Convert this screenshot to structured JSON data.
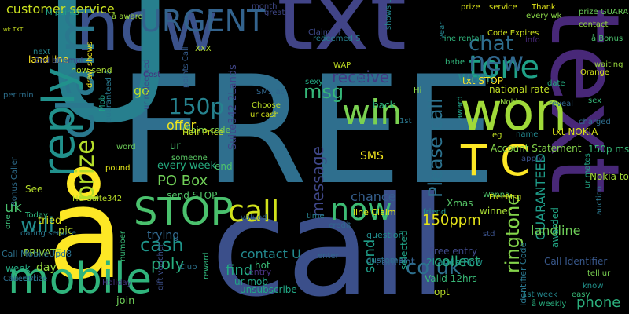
{
  "words": [
    {
      "text": "FREE",
      "color": "#2f6f8e"
    },
    {
      "text": "call",
      "color": "#3b4f8a"
    },
    {
      "text": "txt",
      "color": "#414487"
    },
    {
      "text": "now",
      "color": "#3b528b"
    },
    {
      "text": "U",
      "color": "#277f8e"
    },
    {
      "text": "text",
      "color": "#482878"
    },
    {
      "text": "å",
      "color": "#fde725"
    },
    {
      "text": "won",
      "color": "#a0da39"
    },
    {
      "text": "claim",
      "color": "#2a788e"
    },
    {
      "text": "mobile",
      "color": "#2fb47c"
    },
    {
      "text": "reply",
      "color": "#21918c"
    },
    {
      "text": "STOP",
      "color": "#4ac16d"
    },
    {
      "text": "URGENT",
      "color": "#33638d"
    },
    {
      "text": "win",
      "color": "#7ad151"
    },
    {
      "text": "tone",
      "color": "#1fa187"
    },
    {
      "text": "new",
      "color": "#31688e"
    },
    {
      "text": "prize",
      "color": "#b5de2b"
    },
    {
      "text": "T C",
      "color": "#fde725"
    },
    {
      "text": "now",
      "color": "#3dbc74"
    },
    {
      "text": "call",
      "color": "#d2e21b"
    },
    {
      "text": "150p",
      "color": "#26828e"
    },
    {
      "text": "msg",
      "color": "#35b779"
    },
    {
      "text": "chat",
      "color": "#2e6e8e"
    },
    {
      "text": "want",
      "color": "#25858e"
    },
    {
      "text": "Please call",
      "color": "#2c728e"
    },
    {
      "text": "message",
      "color": "#3f4788"
    },
    {
      "text": "receive",
      "color": "#443a83"
    },
    {
      "text": "will",
      "color": "#228c8d"
    },
    {
      "text": "cash",
      "color": "#1f958b"
    },
    {
      "text": "co uk",
      "color": "#2d708e"
    },
    {
      "text": "ringtone",
      "color": "#84d44b"
    },
    {
      "text": "GUARANTEED",
      "color": "#1e9c89"
    },
    {
      "text": "150ppm",
      "color": "#e5e419"
    },
    {
      "text": "Call Identifier",
      "color": "#38588c"
    },
    {
      "text": "landline",
      "color": "#6ece58"
    },
    {
      "text": "awarded",
      "color": "#21a685"
    },
    {
      "text": "phone",
      "color": "#2cb17e"
    },
    {
      "text": "customer service",
      "color": "#cae11f"
    },
    {
      "text": "poly",
      "color": "#29af7f"
    },
    {
      "text": "contact U",
      "color": "#23898e"
    },
    {
      "text": "collect",
      "color": "#28ae80"
    },
    {
      "text": "send",
      "color": "#1f9e89"
    },
    {
      "text": "find",
      "color": "#23a983"
    },
    {
      "text": "day",
      "color": "#95d840"
    },
    {
      "text": "offer",
      "color": "#f1e51d"
    },
    {
      "text": "PO Box",
      "color": "#70cf57"
    },
    {
      "text": "chance",
      "color": "#355f8d"
    },
    {
      "text": "SMS",
      "color": "#f4e61e"
    },
    {
      "text": "go",
      "color": "#bddf26"
    },
    {
      "text": "Suite342 2Lands",
      "color": "#404688"
    },
    {
      "text": "every week",
      "color": "#26ad81"
    },
    {
      "text": "Xmas",
      "color": "#56c667"
    },
    {
      "text": "winner",
      "color": "#a8db34"
    },
    {
      "text": "Valid 12hrs",
      "color": "#38b977"
    },
    {
      "text": "Free entry",
      "color": "#3e4989"
    },
    {
      "text": "2Lands Row",
      "color": "#1f988b"
    },
    {
      "text": "ur",
      "color": "#4ac16d"
    },
    {
      "text": "end",
      "color": "#4ec36b"
    },
    {
      "text": "send STOP",
      "color": "#52c569"
    },
    {
      "text": "Claim code",
      "color": "#7ad151"
    },
    {
      "text": "Half Price",
      "color": "#cae11f"
    },
    {
      "text": "See",
      "color": "#b5de2b"
    },
    {
      "text": "PRIVATE",
      "color": "#9bd93c"
    },
    {
      "text": "week",
      "color": "#25ab82"
    },
    {
      "text": "latest",
      "color": "#27808e"
    },
    {
      "text": "join",
      "color": "#6ece58"
    },
    {
      "text": "pic",
      "color": "#b8de29"
    },
    {
      "text": "tried",
      "color": "#dde318"
    },
    {
      "text": "trying",
      "color": "#31688e"
    },
    {
      "text": "entry",
      "color": "#46327e"
    },
    {
      "text": "hot",
      "color": "#3aba76"
    },
    {
      "text": "ur mob",
      "color": "#21a585"
    },
    {
      "text": "unsubscribe",
      "color": "#22a785"
    },
    {
      "text": "customer",
      "color": "#2d718e"
    },
    {
      "text": "question",
      "color": "#228d8d"
    },
    {
      "text": "content",
      "color": "#34618d"
    },
    {
      "text": "opt",
      "color": "#bade28"
    },
    {
      "text": "selected",
      "color": "#20a386"
    },
    {
      "text": "Identifier Code",
      "color": "#2a768e"
    },
    {
      "text": "Account Statement",
      "color": "#84d44b"
    },
    {
      "text": "service",
      "color": "#d8e219"
    },
    {
      "text": "Code Expires",
      "color": "#cde11d"
    },
    {
      "text": "Thank",
      "color": "#e2e418"
    },
    {
      "text": "prize GUARANTEED",
      "color": "#6ccd5a"
    },
    {
      "text": "contact",
      "color": "#95d840"
    },
    {
      "text": "Nokia",
      "color": "#93d741"
    },
    {
      "text": "txt STOP",
      "color": "#fde725"
    },
    {
      "text": "national rate",
      "color": "#c0df25"
    },
    {
      "text": "back",
      "color": "#2fb47c"
    },
    {
      "text": "Hi",
      "color": "#90d743"
    },
    {
      "text": "WAP",
      "color": "#c2df23"
    },
    {
      "text": "love",
      "color": "#2d708e"
    },
    {
      "text": "babe",
      "color": "#31b57b"
    },
    {
      "text": "year",
      "color": "#25848e"
    },
    {
      "text": "waiting",
      "color": "#99d83d"
    },
    {
      "text": "Orange",
      "color": "#d5e21a"
    },
    {
      "text": "txt NOKIA",
      "color": "#dae319"
    },
    {
      "text": "150p msg",
      "color": "#38b977"
    },
    {
      "text": "ur mates",
      "color": "#22a785"
    },
    {
      "text": "Nokia tone",
      "color": "#a2da37"
    },
    {
      "text": "auction",
      "color": "#2a788e"
    },
    {
      "text": "charged",
      "color": "#2e6d8e"
    },
    {
      "text": "date",
      "color": "#25ab82"
    },
    {
      "text": "sex",
      "color": "#35b779"
    },
    {
      "text": "reveal",
      "color": "#31678e"
    },
    {
      "text": "name",
      "color": "#24878e"
    },
    {
      "text": "eg",
      "color": "#c0df25"
    },
    {
      "text": "Wanna",
      "color": "#4ec36b"
    },
    {
      "text": "std",
      "color": "#3b528b"
    },
    {
      "text": "apply",
      "color": "#3b528b"
    },
    {
      "text": "info",
      "color": "#482878"
    },
    {
      "text": "line rental",
      "color": "#2fb47c"
    },
    {
      "text": "prize",
      "color": "#dde318"
    },
    {
      "text": "award",
      "color": "#1fa088"
    },
    {
      "text": "1st",
      "color": "#2a788e"
    },
    {
      "text": "line Claim",
      "color": "#dde318"
    },
    {
      "text": "friend",
      "color": "#1f948c"
    },
    {
      "text": "credit",
      "color": "#31688e"
    },
    {
      "text": "time",
      "color": "#26828e"
    },
    {
      "text": "valued",
      "color": "#31688e"
    },
    {
      "text": "Choose",
      "color": "#bddf26"
    },
    {
      "text": "ur cash",
      "color": "#d2e21b"
    },
    {
      "text": "SMS ac",
      "color": "#31668e"
    },
    {
      "text": "points Call",
      "color": "#365c8d"
    },
    {
      "text": "Cost",
      "color": "#46307e"
    },
    {
      "text": "sexy",
      "color": "#23a983"
    },
    {
      "text": "XXX",
      "color": "#b5de2b"
    },
    {
      "text": "Claim ur",
      "color": "#3e4989"
    },
    {
      "text": "redeemed S",
      "color": "#277f8e"
    },
    {
      "text": "ur redeemed",
      "color": "#3e4989"
    },
    {
      "text": "guaranteed å",
      "color": "#2a788e"
    },
    {
      "text": "draw shows",
      "color": "#f1e51d"
    },
    {
      "text": "now send",
      "color": "#a8db34"
    },
    {
      "text": "next",
      "color": "#25858e"
    },
    {
      "text": "land line",
      "color": "#fde725"
    },
    {
      "text": "per min",
      "color": "#2d708e"
    },
    {
      "text": "2nd attempt",
      "color": "#3e4989"
    },
    {
      "text": "M points",
      "color": "#1fa088"
    },
    {
      "text": "å award",
      "color": "#9bd93c"
    },
    {
      "text": "month",
      "color": "#3f4788"
    },
    {
      "text": "great",
      "color": "#3f4788"
    },
    {
      "text": "wk TXT",
      "color": "#c8e020"
    },
    {
      "text": "Caller Prize",
      "color": "#2e6d8e"
    },
    {
      "text": "Call MobileUpd8",
      "color": "#2c728e"
    },
    {
      "text": "Bonus Caller",
      "color": "#2e6d8e"
    },
    {
      "text": "Today",
      "color": "#2fb47c"
    },
    {
      "text": "dating service",
      "color": "#2a768e"
    },
    {
      "text": "one",
      "color": "#3aba76"
    },
    {
      "text": "Holiday",
      "color": "#453581"
    },
    {
      "text": "Club",
      "color": "#2c738e"
    },
    {
      "text": "reward",
      "color": "#30b57c"
    },
    {
      "text": "gift voucher",
      "color": "#3c4f8a"
    },
    {
      "text": "someone",
      "color": "#5ac864"
    },
    {
      "text": "1st week",
      "color": "#24878e"
    },
    {
      "text": "easy",
      "color": "#38b977"
    },
    {
      "text": "å weekly",
      "color": "#29af7f"
    },
    {
      "text": "tell ur",
      "color": "#7ad151"
    },
    {
      "text": "know",
      "color": "#21918c"
    },
    {
      "text": "every wk",
      "color": "#89d548"
    },
    {
      "text": "å Bonus",
      "color": "#4ac16d"
    },
    {
      "text": "FreeMsg",
      "color": "#d5e21a"
    },
    {
      "text": "enter",
      "color": "#31678e"
    },
    {
      "text": "word",
      "color": "#6ece58"
    },
    {
      "text": "number",
      "color": "#38b977"
    },
    {
      "text": "pound",
      "color": "#e2e418"
    },
    {
      "text": "HG Suite342",
      "color": "#bade28"
    },
    {
      "text": "Mob",
      "color": "#1fa088"
    },
    {
      "text": "shows ur",
      "color": "#24868e"
    },
    {
      "text": "uk",
      "color": "#4ac16d"
    }
  ]
}
